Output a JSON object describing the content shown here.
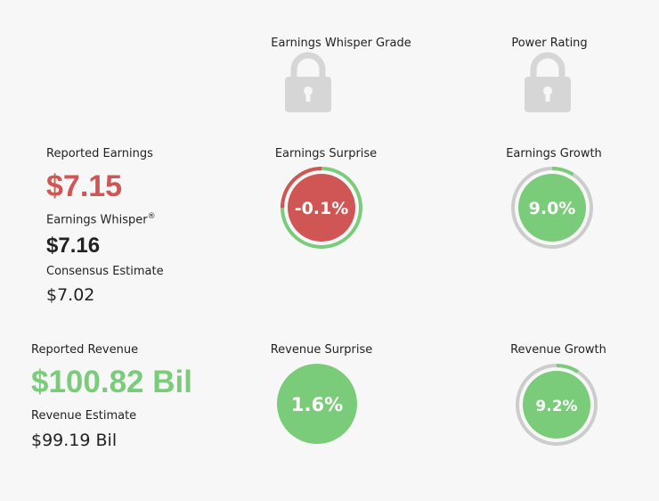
{
  "grades": {
    "whisper_grade_label": "Earnings Whisper Grade",
    "power_rating_label": "Power Rating"
  },
  "earnings": {
    "reported_label": "Reported Earnings",
    "reported_value": "$7.15",
    "whisper_label": "Earnings Whisper",
    "whisper_mark": "®",
    "whisper_value": "$7.16",
    "consensus_label": "Consensus Estimate",
    "consensus_value": "$7.02",
    "surprise_label": "Earnings Surprise",
    "surprise_value": "-0.1%",
    "surprise_fraction": 0.75,
    "growth_label": "Earnings Growth",
    "growth_value": "9.0%",
    "growth_fraction": 0.09
  },
  "revenue": {
    "reported_label": "Reported Revenue",
    "reported_value": "$100.82 Bil",
    "estimate_label": "Revenue Estimate",
    "estimate_value": "$99.19 Bil",
    "surprise_label": "Revenue Surprise",
    "surprise_value": "1.6%",
    "growth_label": "Revenue Growth",
    "growth_value": "9.2%",
    "growth_fraction": 0.092
  },
  "colors": {
    "green": "#7bcc7a",
    "red": "#d05555",
    "gray": "#cccccc",
    "lock": "#d6d6d6"
  },
  "icons": [
    "lock-icon"
  ]
}
